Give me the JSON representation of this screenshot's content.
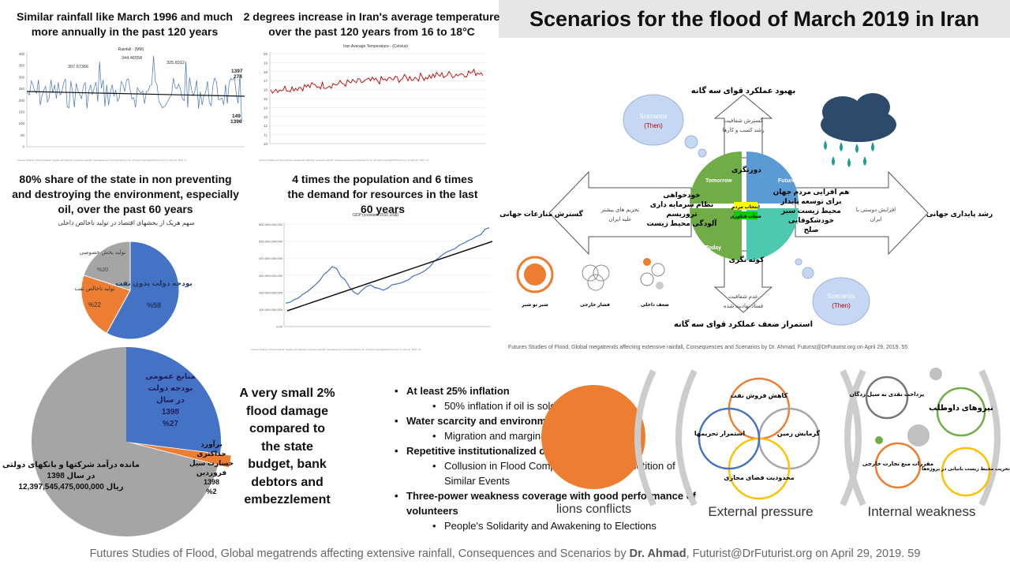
{
  "title": "Scenarios for the flood of March 2019 in Iran",
  "headings": {
    "rainfall": "Similar rainfall like March 1996 and much more annually in the past 120 years",
    "temperature": "2 degrees increase in Iran's average temperature over the past 120 years from 16 to 18°C",
    "share": "80% share of the state in non preventing and destroying the environment, especially oil, over the past 60 years",
    "population": "4 times the population and 6 times the demand for resources in the last 60 years",
    "damage": "A very small 2% flood damage compared to the state budget, bank debtors and embezzlement"
  },
  "rainfall_chart": {
    "title": "Rainfall - (MM)",
    "yticks": [
      "400",
      "350",
      "300",
      "250",
      "200",
      "150",
      "100",
      "50",
      "0"
    ],
    "labels": [
      "307.67366",
      "344.46558",
      "325.8312",
      "1397",
      "274",
      "149",
      "1396"
    ],
    "notes": "Futures Studies of Flood Global megatrends affecting extensive rainfall, Consequences and Scenarios by Dr. Ahmad Futurist@DrFuturist.org on April 29, 2019. 9"
  },
  "temperature_chart": {
    "title": "Iran Average Temperature - (Celsius)",
    "yticks": [
      "20",
      "19",
      "18",
      "17",
      "16",
      "15",
      "14",
      "13",
      "12",
      "11",
      "10"
    ],
    "notes": "Futures Studies of Flood Global megatrends affecting extensive rainfall, Consequences and Scenarios by Dr. Ahmad Futurist@DrFuturist.org on April 29, 2019. 12"
  },
  "share_pie": {
    "subtitle": "سهم هریک از بخشهای اقتصاد در تولید ناخالص داخلی",
    "slices": [
      {
        "label": "بودجه دولت بدون نفت",
        "value_label": "%58",
        "value": 58,
        "color": "#4472c4"
      },
      {
        "label": "تولید ناخالص نفت",
        "value_label": "%22",
        "value": 22,
        "color": "#ed7d31"
      },
      {
        "label": "تولید بخش خصوصی",
        "value_label": "%20",
        "value": 20,
        "color": "#a5a5a5"
      }
    ]
  },
  "gdp_chart": {
    "title": "GDP (constant 2010 US$)",
    "yticks": [
      "600,000,000,000",
      "500,000,000,000",
      "400,000,000,000",
      "300,000,000,000",
      "200,000,000,000",
      "100,000,000,000",
      "0.00"
    ],
    "notes": "Futures Studies of Flood Global megatrends affecting extensive rainfall, Consequences and Scenarios by Dr. Ahmad Futurist@DrFuturist.org on April 29, 2019. 31"
  },
  "budget_pie": {
    "slices": [
      {
        "label": "منابع عمومی بودجه دولت در سال 1398 %27",
        "value": 27,
        "color": "#4472c4"
      },
      {
        "label": "برآورد حداکثری خسارت سیل فروردین 1398 %2",
        "value": 2,
        "color": "#ed7d31"
      },
      {
        "label": "مانده درآمد شرکتها و بانکهای دولتی در سال 1398",
        "amount": "12,397,545,475,000,000 ریال",
        "value": 71,
        "color": "#a5a5a5"
      }
    ],
    "blue_lines": [
      "منابع عمومی",
      "بودجه دولت",
      "در سال",
      "1398",
      "%27"
    ],
    "orange_lines": [
      "برآورد",
      "حداکثری",
      "خسارت سیل",
      "فروردین",
      "1398",
      "%2"
    ],
    "grey_lines": [
      "مانده درآمد شرکتها و بانکهای دولتی",
      "در سال 1398",
      "12,397,545,475,000,000 ریال"
    ]
  },
  "scenario": {
    "top_title": "بهبود عملکرد قوای سه گانه",
    "top_arrow": [
      "گسترش شفافیت",
      "رشد کسب و کارها"
    ],
    "bottom_title": "استمرار ضعف عملکرد قوای سه گانه",
    "bottom_arrow": [
      "عدم شفافیت",
      "فساد نهادینه شده"
    ],
    "left_title": "گسترش منازعات جهانی",
    "left_arrow": [
      "تحریم های بیشتر",
      "علیه ایران"
    ],
    "right_title": "رشد پایداری جهانی",
    "right_arrow": [
      "افزایش دوستی با",
      "ایران"
    ],
    "quadrants": {
      "tomorrow": "Tomorrow",
      "future": "Future",
      "today": "Today",
      "past": "Past"
    },
    "labels": {
      "dorangari": "دورنگری",
      "kotahnegari": "کوته نگری"
    },
    "left_list": [
      "خودخواهی",
      "نظام سرمایه داری",
      "تروریسم",
      "آلودگی محیط زیست"
    ],
    "right_list": [
      "هم افزایی مردم جهان",
      "برای توسعه پایدار",
      "محیط زیست سبز",
      "خودشکوفایی",
      "صلح"
    ],
    "center_yellow": "انتخاب مردم",
    "center_green": "شتاب فناوری",
    "cloud_then": "Scenarios",
    "cloud_then_sub": "(Then)",
    "bottom_groups": [
      "شیر تو شیر",
      "فشار خارجی",
      "ضعف داخلی"
    ],
    "notes": "Futures Studies of Flood, Global megatrends  affecting extensive rainfall, Consequences and Scenarios by Dr. Ahmad, Futurist@DrFuturist.org on April 29, 2019.  55"
  },
  "bullets": {
    "b1": "At least 25% inflation",
    "b1a": "50% inflation if oil is sold",
    "b2": "Water scarcity and environmental degradation",
    "b2a": "Migration and marginalization in metropolis",
    "b3": "Repetitive institutionalized corruption",
    "b3a": "Collusion in Flood Compensation and Repetition of Similar Events",
    "b4": "Three-power weakness coverage with good performance of volunteers",
    "b4_overlap": "lions conflicts",
    "b4a": "People's Solidarity and Awakening to Elections"
  },
  "pressure": {
    "external_label": "External pressure",
    "internal_label": "Internal weakness",
    "ext_circles": [
      "کاهش فروش نفت",
      "گرمایش زمین",
      "محدودیت فضای مجازی",
      "استمرار تحریمها"
    ],
    "int_circles": [
      "نیروهای داوطلب",
      "پرداخت نقدی به سیل زدگان",
      "مقررات منع تجارت خارجی",
      "تخریب محیط زیست بانیانی در پروژه‌ها"
    ]
  },
  "footer": {
    "prefix": "Futures Studies of Flood, Global megatrends  affecting extensive rainfall, Consequences and Scenarios by ",
    "author": "Dr. Ahmad",
    "suffix": ", Futurist@DrFuturist.org on April 29, 2019.  59"
  },
  "colors": {
    "accent_blue": "#4472c4",
    "accent_orange": "#ed7d31",
    "grey": "#a5a5a5",
    "green": "#70ad47",
    "teal": "#4dc9b0",
    "future_blue": "#5b9bd5"
  }
}
